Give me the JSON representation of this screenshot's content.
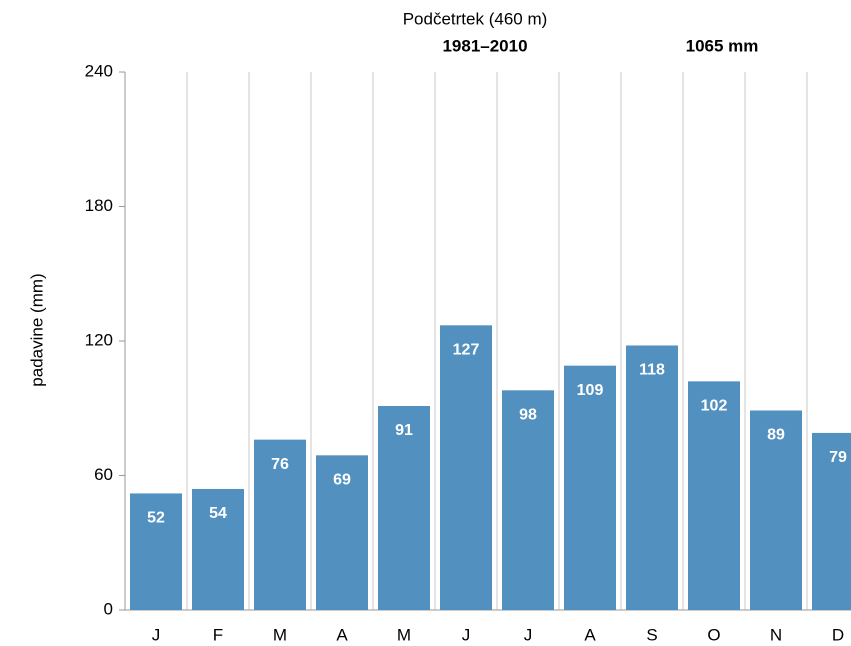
{
  "chart_data": {
    "type": "bar",
    "title": "Podčetrtek (460 m)",
    "period": "1981–2010",
    "total": "1065 mm",
    "y_label": "padavine (mm)",
    "categories": [
      "J",
      "F",
      "M",
      "A",
      "M",
      "J",
      "J",
      "A",
      "S",
      "O",
      "N",
      "D"
    ],
    "values": [
      52,
      54,
      76,
      69,
      91,
      127,
      98,
      109,
      118,
      102,
      89,
      79
    ],
    "color": "#5290c0",
    "ylim": [
      0,
      240
    ],
    "yticks": [
      0,
      60,
      120,
      180,
      240
    ]
  }
}
